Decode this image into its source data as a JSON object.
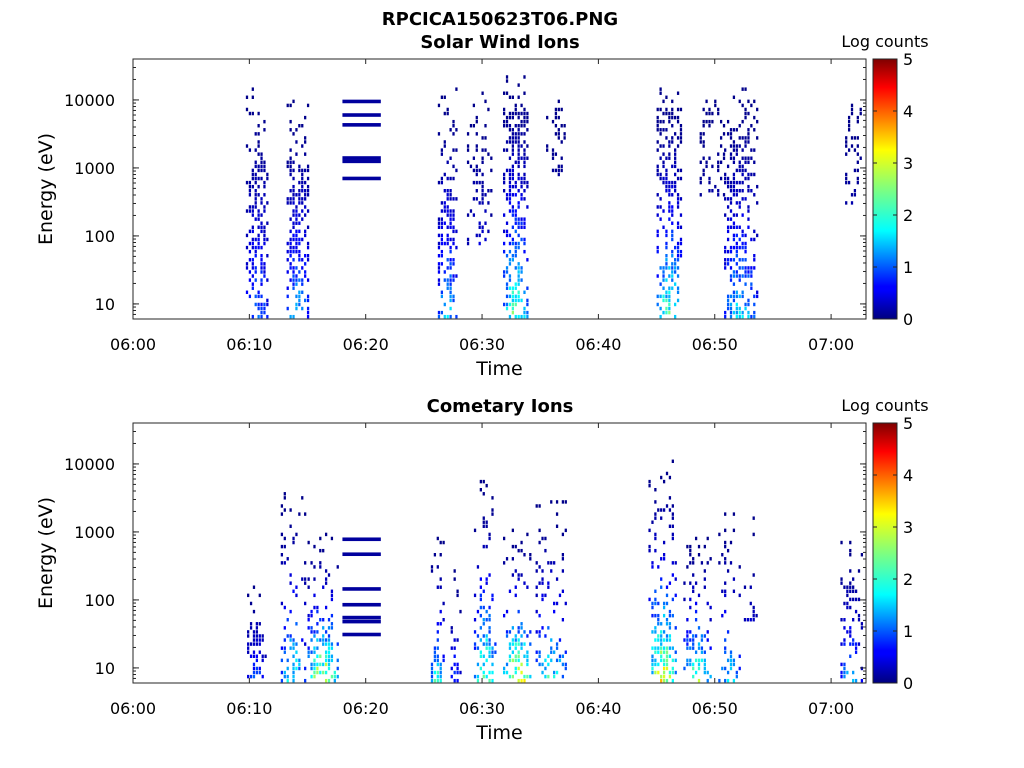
{
  "figure": {
    "title": "RPCICA150623T06.PNG"
  },
  "chart_data": [
    {
      "type": "heatmap",
      "title": "Solar Wind Ions",
      "xlabel": "Time",
      "ylabel": "Energy (eV)",
      "x_ticks": [
        "06:00",
        "06:10",
        "06:20",
        "06:30",
        "06:40",
        "06:50",
        "07:00"
      ],
      "y_ticks": [
        "10",
        "100",
        "1000",
        "10000"
      ],
      "y_scale": "log",
      "ylim": [
        6,
        40000
      ],
      "xlim": [
        "06:00",
        "07:03"
      ],
      "colorbar": {
        "label": "Log counts",
        "ticks": [
          "0",
          "1",
          "2",
          "3",
          "4",
          "5"
        ],
        "range": [
          0,
          5
        ],
        "colormap": "jet"
      },
      "bursts": [
        {
          "start": "06:09.7",
          "end": "06:11.7",
          "emin": 6,
          "emax": 20000,
          "peak_lc": 1.4,
          "dense_below": 1200,
          "density": 0.55
        },
        {
          "start": "06:13.2",
          "end": "06:15.2",
          "emin": 6,
          "emax": 12000,
          "peak_lc": 1.9,
          "dense_below": 1200,
          "density": 0.55
        },
        {
          "start": "06:26.2",
          "end": "06:27.9",
          "emin": 6,
          "emax": 15000,
          "peak_lc": 2.0,
          "dense_below": 400,
          "density": 0.5
        },
        {
          "start": "06:28.7",
          "end": "06:30.8",
          "emin": 60,
          "emax": 15000,
          "peak_lc": 1.1,
          "dense_below": 5000,
          "density": 0.3
        },
        {
          "start": "06:31.8",
          "end": "06:34.0",
          "emin": 6,
          "emax": 25000,
          "peak_lc": 2.8,
          "dense_below": 8000,
          "density": 0.6
        },
        {
          "start": "06:35.5",
          "end": "06:37.2",
          "emin": 700,
          "emax": 10000,
          "peak_lc": 1.1,
          "dense_below": 10000,
          "density": 0.3
        },
        {
          "start": "06:45.0",
          "end": "06:47.2",
          "emin": 6,
          "emax": 15000,
          "peak_lc": 2.8,
          "dense_below": 8000,
          "density": 0.5
        },
        {
          "start": "06:48.7",
          "end": "06:50.8",
          "emin": 300,
          "emax": 10000,
          "peak_lc": 1.1,
          "dense_below": 10000,
          "density": 0.25
        },
        {
          "start": "06:50.8",
          "end": "06:53.6",
          "emin": 6,
          "emax": 15000,
          "peak_lc": 2.1,
          "dense_below": 4000,
          "density": 0.5
        },
        {
          "start": "07:01.2",
          "end": "07:02.6",
          "emin": 300,
          "emax": 9000,
          "peak_lc": 1.1,
          "dense_below": 9000,
          "density": 0.3
        }
      ],
      "sweep_lines": {
        "start": "06:18.0",
        "end": "06:21.3",
        "energies": [
          9500,
          6000,
          4300,
          1400,
          1250,
          700
        ]
      }
    },
    {
      "type": "heatmap",
      "title": "Cometary Ions",
      "xlabel": "Time",
      "ylabel": "Energy (eV)",
      "x_ticks": [
        "06:00",
        "06:10",
        "06:20",
        "06:30",
        "06:40",
        "06:50",
        "07:00"
      ],
      "y_ticks": [
        "10",
        "100",
        "1000",
        "10000"
      ],
      "y_scale": "log",
      "ylim": [
        6,
        40000
      ],
      "xlim": [
        "06:00",
        "07:03"
      ],
      "colorbar": {
        "label": "Log counts",
        "ticks": [
          "0",
          "1",
          "2",
          "3",
          "4",
          "5"
        ],
        "range": [
          0,
          5
        ],
        "colormap": "jet"
      },
      "bursts": [
        {
          "start": "06:09.8",
          "end": "06:11.4",
          "emin": 6,
          "emax": 200,
          "peak_lc": 1.3,
          "dense_below": 40,
          "density": 0.45
        },
        {
          "start": "06:12.7",
          "end": "06:14.8",
          "emin": 6,
          "emax": 4000,
          "peak_lc": 2.6,
          "dense_below": 30,
          "density": 0.45
        },
        {
          "start": "06:15.0",
          "end": "06:17.7",
          "emin": 6,
          "emax": 1000,
          "peak_lc": 3.8,
          "dense_below": 40,
          "density": 0.55
        },
        {
          "start": "06:25.6",
          "end": "06:26.8",
          "emin": 6,
          "emax": 1000,
          "peak_lc": 2.6,
          "dense_below": 15,
          "density": 0.4
        },
        {
          "start": "06:27.3",
          "end": "06:28.2",
          "emin": 6,
          "emax": 300,
          "peak_lc": 1.2,
          "dense_below": 15,
          "density": 0.35
        },
        {
          "start": "06:29.3",
          "end": "06:31.3",
          "emin": 6,
          "emax": 6000,
          "peak_lc": 3.2,
          "dense_below": 80,
          "density": 0.45
        },
        {
          "start": "06:31.8",
          "end": "06:34.3",
          "emin": 6,
          "emax": 1200,
          "peak_lc": 3.9,
          "dense_below": 40,
          "density": 0.55
        },
        {
          "start": "06:34.6",
          "end": "06:37.3",
          "emin": 6,
          "emax": 3000,
          "peak_lc": 2.6,
          "dense_below": 20,
          "density": 0.45
        },
        {
          "start": "06:44.3",
          "end": "06:46.8",
          "emin": 6,
          "emax": 12000,
          "peak_lc": 3.7,
          "dense_below": 60,
          "density": 0.5
        },
        {
          "start": "06:47.3",
          "end": "06:49.8",
          "emin": 6,
          "emax": 900,
          "peak_lc": 3.1,
          "dense_below": 30,
          "density": 0.5
        },
        {
          "start": "06:50.3",
          "end": "06:52.3",
          "emin": 6,
          "emax": 2000,
          "peak_lc": 2.1,
          "dense_below": 15,
          "density": 0.4
        },
        {
          "start": "06:52.5",
          "end": "06:53.7",
          "emin": 50,
          "emax": 2000,
          "peak_lc": 1.1,
          "dense_below": 100,
          "density": 0.25
        },
        {
          "start": "07:00.8",
          "end": "07:02.6",
          "emin": 6,
          "emax": 800,
          "peak_lc": 1.8,
          "dense_below": 200,
          "density": 0.35
        }
      ],
      "sweep_lines": {
        "start": "06:18.0",
        "end": "06:21.3",
        "energies": [
          780,
          470,
          145,
          85,
          55,
          48,
          31
        ]
      }
    }
  ]
}
